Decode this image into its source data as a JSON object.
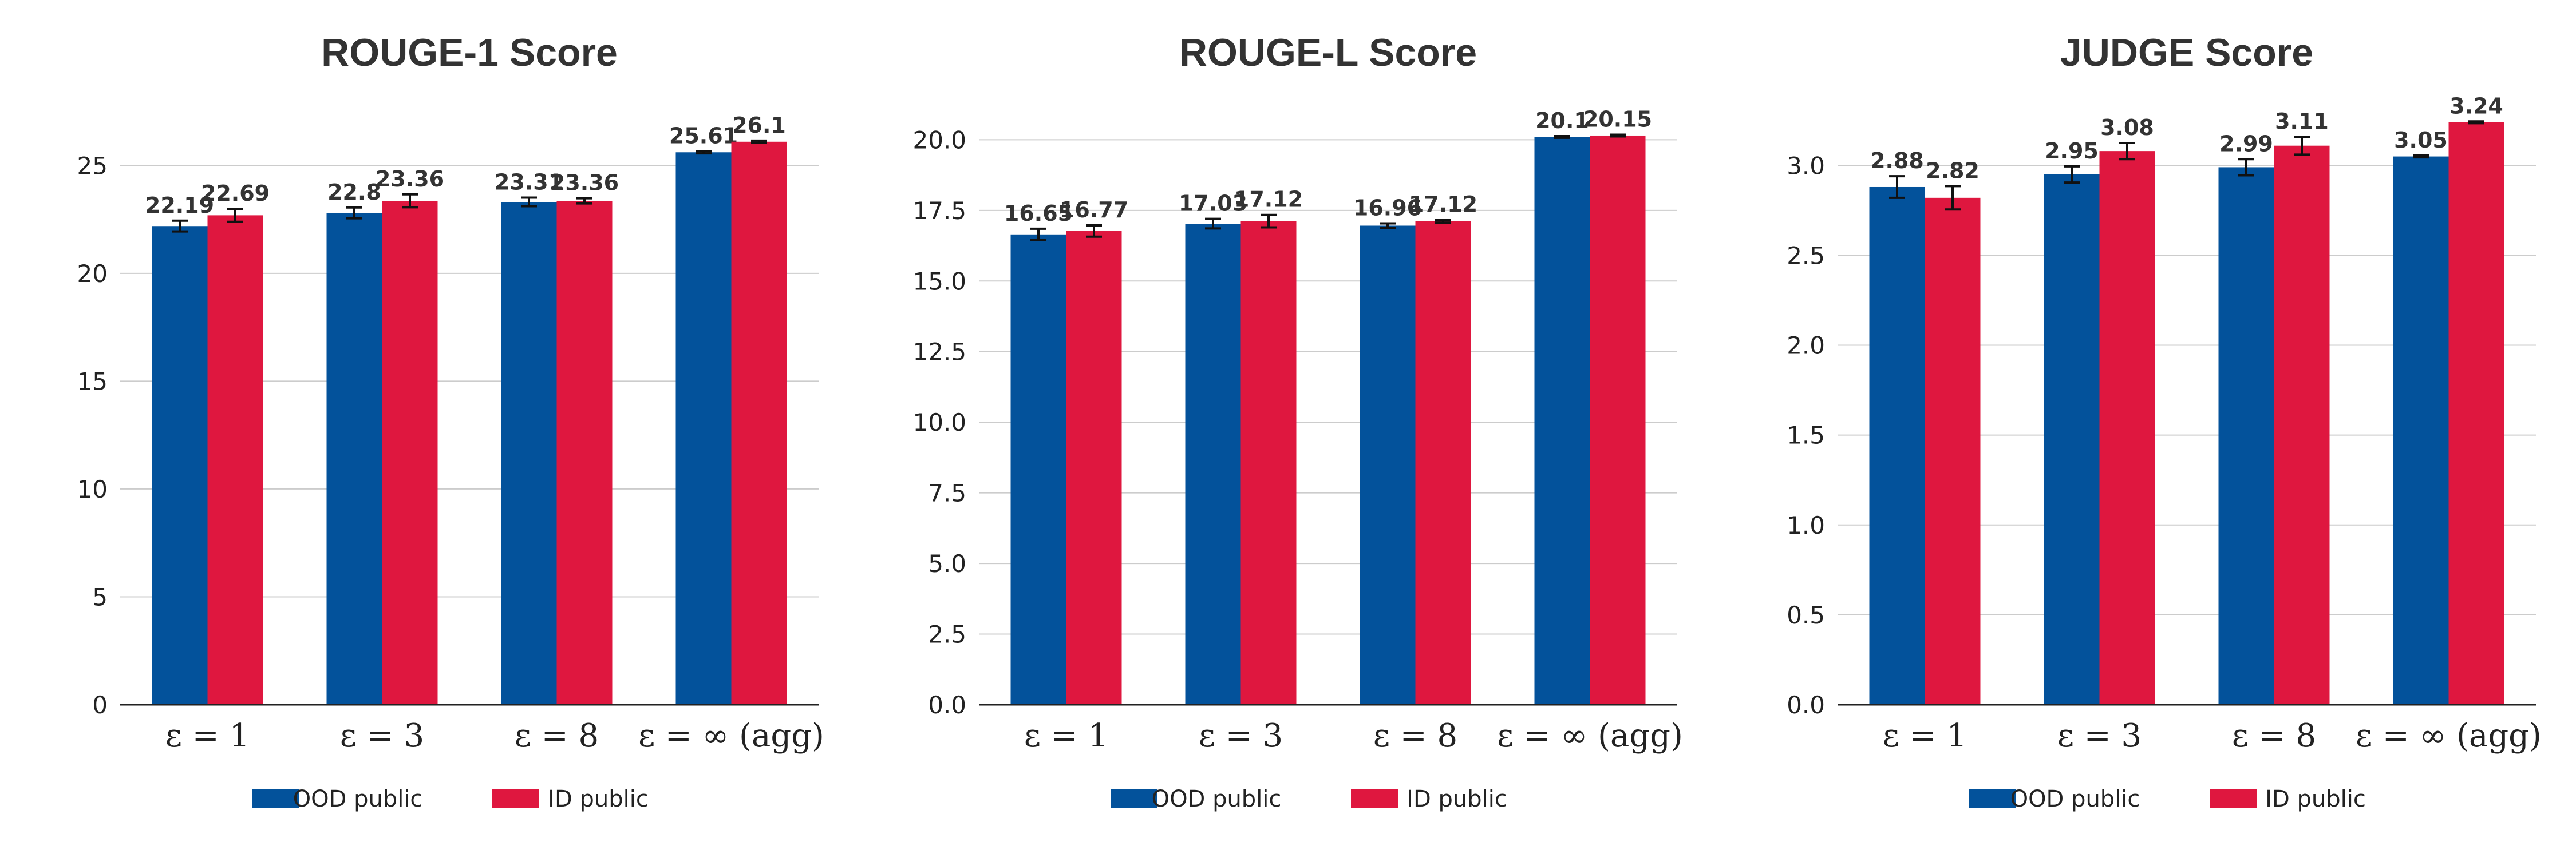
{
  "chart_data": [
    {
      "type": "bar",
      "title": "ROUGE-1 Score",
      "categories": [
        "ε = 1",
        "ε = 3",
        "ε = 8",
        "ε = ∞ (agg)"
      ],
      "series": [
        {
          "name": "OOD public",
          "values": [
            22.19,
            22.8,
            23.31,
            25.61
          ],
          "errors": [
            0.25,
            0.25,
            0.2,
            0.05
          ]
        },
        {
          "name": "ID public",
          "values": [
            22.69,
            23.36,
            23.36,
            26.1
          ],
          "errors": [
            0.3,
            0.3,
            0.12,
            0.05
          ]
        }
      ],
      "data_labels": [
        [
          "22.19",
          "22.8",
          "23.31",
          "25.61"
        ],
        [
          "22.69",
          "23.36",
          "23.36",
          "26.1"
        ]
      ],
      "ylim": [
        0,
        27.5
      ],
      "yticks": [
        0,
        5,
        10,
        15,
        20,
        25
      ],
      "ytick_labels": [
        "0",
        "5",
        "10",
        "15",
        "20",
        "25"
      ],
      "xlabel": "",
      "ylabel": "",
      "grid": "y",
      "legend": "bottom"
    },
    {
      "type": "bar",
      "title": "ROUGE-L Score",
      "categories": [
        "ε = 1",
        "ε = 3",
        "ε = 8",
        "ε = ∞ (agg)"
      ],
      "series": [
        {
          "name": "OOD public",
          "values": [
            16.65,
            17.03,
            16.96,
            20.1
          ],
          "errors": [
            0.2,
            0.17,
            0.08,
            0.03
          ]
        },
        {
          "name": "ID public",
          "values": [
            16.77,
            17.12,
            17.12,
            20.15
          ],
          "errors": [
            0.2,
            0.22,
            0.05,
            0.03
          ]
        }
      ],
      "data_labels": [
        [
          "16.65",
          "17.03",
          "16.96",
          "20.1"
        ],
        [
          "16.77",
          "17.12",
          "17.12",
          "20.15"
        ]
      ],
      "ylim": [
        0,
        21.0
      ],
      "yticks": [
        0,
        2.5,
        5,
        7.5,
        10,
        12.5,
        15,
        17.5,
        20
      ],
      "ytick_labels": [
        "0.0",
        "2.5",
        "5.0",
        "7.5",
        "10.0",
        "12.5",
        "15.0",
        "17.5",
        "20.0"
      ],
      "xlabel": "",
      "ylabel": "",
      "grid": "y",
      "legend": "bottom"
    },
    {
      "type": "bar",
      "title": "JUDGE Score",
      "categories": [
        "ε = 1",
        "ε = 3",
        "ε = 8",
        "ε = ∞ (agg)"
      ],
      "series": [
        {
          "name": "OOD public",
          "values": [
            2.88,
            2.95,
            2.99,
            3.05
          ],
          "errors": [
            0.06,
            0.045,
            0.045,
            0.005
          ]
        },
        {
          "name": "ID public",
          "values": [
            2.82,
            3.08,
            3.11,
            3.24
          ],
          "errors": [
            0.065,
            0.045,
            0.05,
            0.005
          ]
        }
      ],
      "data_labels": [
        [
          "2.88",
          "2.95",
          "2.99",
          "3.05"
        ],
        [
          "2.82",
          "3.08",
          "3.11",
          "3.24"
        ]
      ],
      "ylim": [
        0,
        3.3
      ],
      "yticks": [
        0,
        0.5,
        1,
        1.5,
        2,
        2.5,
        3
      ],
      "ytick_labels": [
        "0.0",
        "0.5",
        "1.0",
        "1.5",
        "2.0",
        "2.5",
        "3.0"
      ],
      "xlabel": "",
      "ylabel": "",
      "grid": "y",
      "legend": "bottom"
    }
  ],
  "colors": {
    "OOD public": "#03529b",
    "ID public": "#df173f"
  }
}
